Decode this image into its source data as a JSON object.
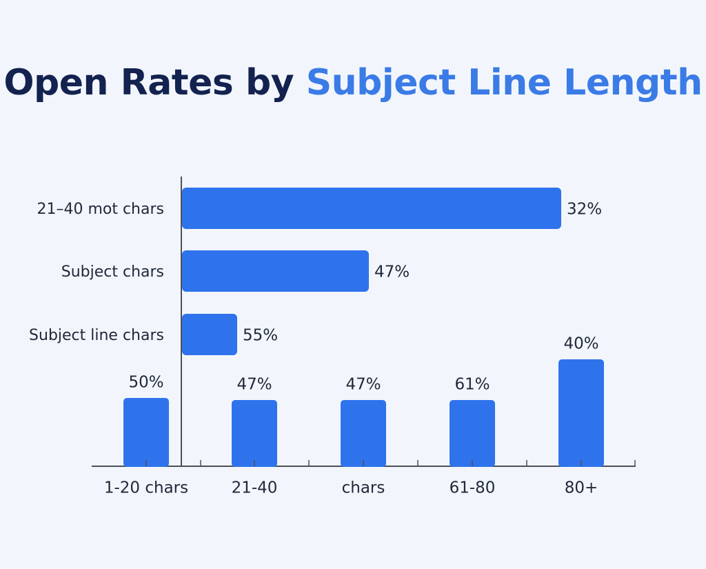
{
  "title": {
    "part1": "Open Rates by ",
    "part2": "Subject Line Length",
    "color_dark": "#13224f",
    "color_accent": "#3a7be6"
  },
  "colors": {
    "bar": "#2f73ec",
    "axis": "#4a4f5a",
    "label": "#20283a"
  },
  "chart_data": [
    {
      "type": "bar",
      "orientation": "horizontal",
      "categories": [
        "21–40 mot chars",
        "Subject chars",
        "Subject line chars"
      ],
      "values": [
        32,
        47,
        55
      ],
      "value_labels": [
        "32%",
        "47%",
        "55%"
      ],
      "grid": false
    },
    {
      "type": "bar",
      "orientation": "vertical",
      "categories": [
        "1-20 chars",
        "21-40",
        "chars",
        "61-80",
        "80+"
      ],
      "values": [
        50,
        47,
        47,
        61,
        40
      ],
      "value_labels": [
        "50%",
        "47%",
        "47%",
        "61%",
        "40%"
      ],
      "grid": false
    }
  ]
}
